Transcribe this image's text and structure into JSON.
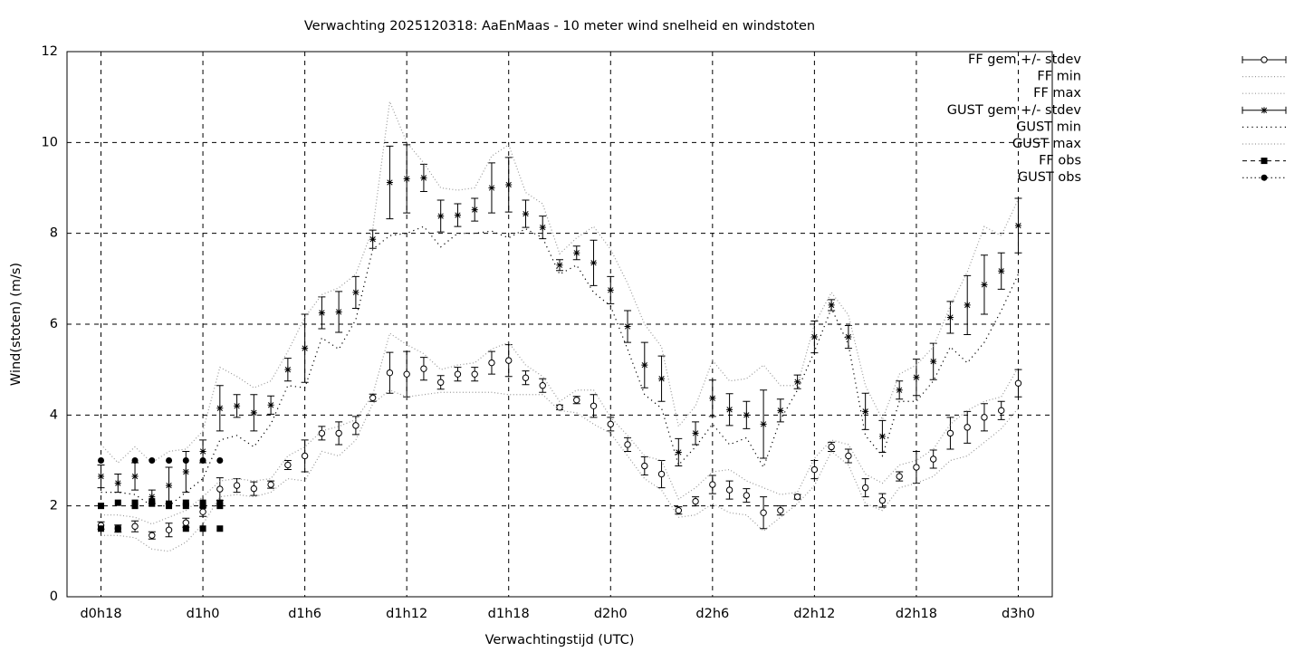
{
  "chart_data": {
    "type": "errorbar",
    "title": "Verwachting 2025120318: AaEnMaas - 10 meter wind snelheid en windstoten",
    "x_label": "Verwachtingstijd (UTC)",
    "y_label": "Wind(stoten) (m/s)",
    "xlim": [
      16,
      74
    ],
    "xticks": [
      {
        "value": 18,
        "label": "d0h18"
      },
      {
        "value": 24,
        "label": "d1h0"
      },
      {
        "value": 30,
        "label": "d1h6"
      },
      {
        "value": 36,
        "label": "d1h12"
      },
      {
        "value": 42,
        "label": "d1h18"
      },
      {
        "value": 48,
        "label": "d2h0"
      },
      {
        "value": 54,
        "label": "d2h6"
      },
      {
        "value": 60,
        "label": "d2h12"
      },
      {
        "value": 66,
        "label": "d2h18"
      },
      {
        "value": 72,
        "label": "d3h0"
      }
    ],
    "ylim": [
      0,
      12
    ],
    "yticks": [
      0,
      2,
      4,
      6,
      8,
      10,
      12
    ],
    "grid": true,
    "legend": "outside-right",
    "x": [
      18,
      19,
      20,
      21,
      22,
      23,
      24,
      25,
      26,
      27,
      28,
      29,
      30,
      31,
      32,
      33,
      34,
      35,
      36,
      37,
      38,
      39,
      40,
      41,
      42,
      43,
      44,
      45,
      46,
      47,
      48,
      49,
      50,
      51,
      52,
      53,
      54,
      55,
      56,
      57,
      58,
      59,
      60,
      61,
      62,
      63,
      64,
      65,
      66,
      67,
      68,
      69,
      70,
      71,
      72
    ],
    "series": [
      {
        "name": "FF gem +/- stdev",
        "style": "errorbar",
        "marker": "circle",
        "color": "#000000",
        "values": [
          1.57,
          1.5,
          1.55,
          1.35,
          1.47,
          1.63,
          1.87,
          2.37,
          2.45,
          2.38,
          2.47,
          2.9,
          3.1,
          3.6,
          3.6,
          3.77,
          4.38,
          4.93,
          4.9,
          5.02,
          4.72,
          4.9,
          4.9,
          5.15,
          5.2,
          4.82,
          4.65,
          4.17,
          4.33,
          4.2,
          3.8,
          3.35,
          2.88,
          2.7,
          1.9,
          2.1,
          2.47,
          2.35,
          2.23,
          1.85,
          1.9,
          2.2,
          2.8,
          3.3,
          3.1,
          2.4,
          2.12,
          2.65,
          2.85,
          3.03,
          3.6,
          3.73,
          3.95,
          4.1,
          4.7
        ],
        "errors": [
          0.08,
          0.08,
          0.12,
          0.08,
          0.15,
          0.1,
          0.1,
          0.25,
          0.15,
          0.15,
          0.08,
          0.1,
          0.35,
          0.15,
          0.25,
          0.2,
          0.08,
          0.45,
          0.5,
          0.25,
          0.15,
          0.15,
          0.15,
          0.25,
          0.35,
          0.15,
          0.15,
          0.05,
          0.08,
          0.25,
          0.15,
          0.15,
          0.2,
          0.3,
          0.08,
          0.1,
          0.2,
          0.2,
          0.15,
          0.35,
          0.1,
          0.05,
          0.2,
          0.1,
          0.15,
          0.2,
          0.15,
          0.1,
          0.35,
          0.2,
          0.35,
          0.35,
          0.3,
          0.2,
          0.3
        ]
      },
      {
        "name": "FF min",
        "style": "dotted",
        "color": "#999999",
        "values": [
          1.35,
          1.35,
          1.3,
          1.05,
          1.0,
          1.2,
          1.6,
          2.2,
          2.25,
          2.2,
          2.3,
          2.6,
          2.55,
          3.2,
          3.1,
          3.45,
          4.25,
          4.55,
          4.4,
          4.45,
          4.5,
          4.5,
          4.5,
          4.5,
          4.45,
          4.45,
          4.45,
          4.1,
          4.05,
          3.8,
          3.6,
          3.1,
          2.6,
          2.35,
          1.75,
          1.8,
          2.05,
          1.85,
          1.8,
          1.45,
          1.75,
          2.05,
          2.45,
          3.2,
          2.9,
          2.05,
          1.9,
          2.4,
          2.5,
          2.65,
          3.0,
          3.1,
          3.4,
          3.7,
          4.15
        ]
      },
      {
        "name": "FF max",
        "style": "dotted",
        "color": "#999999",
        "values": [
          1.8,
          1.8,
          1.75,
          1.6,
          1.75,
          1.9,
          2.2,
          2.55,
          2.6,
          2.55,
          2.6,
          3.1,
          3.3,
          3.65,
          3.75,
          3.9,
          4.45,
          5.8,
          5.55,
          5.35,
          5.0,
          5.1,
          5.15,
          5.45,
          5.6,
          5.1,
          4.85,
          4.3,
          4.55,
          4.55,
          3.95,
          3.55,
          3.1,
          3.0,
          2.15,
          2.4,
          2.75,
          2.8,
          2.55,
          2.4,
          2.25,
          2.3,
          3.05,
          3.45,
          3.35,
          2.7,
          2.5,
          2.9,
          3.0,
          3.25,
          3.8,
          4.1,
          4.3,
          4.4,
          5.05
        ]
      },
      {
        "name": "GUST gem +/- stdev",
        "style": "errorbar",
        "marker": "star",
        "color": "#000000",
        "values": [
          2.65,
          2.5,
          2.65,
          2.2,
          2.45,
          2.75,
          3.2,
          4.15,
          4.2,
          4.05,
          4.22,
          5.0,
          5.47,
          6.25,
          6.27,
          6.7,
          7.87,
          9.12,
          9.2,
          9.22,
          8.38,
          8.4,
          8.52,
          9.0,
          9.07,
          8.43,
          8.13,
          7.3,
          7.57,
          7.35,
          6.75,
          5.95,
          5.1,
          4.8,
          3.18,
          3.6,
          4.37,
          4.12,
          4.0,
          3.8,
          4.1,
          4.73,
          5.72,
          6.42,
          5.72,
          4.08,
          3.53,
          4.55,
          4.83,
          5.18,
          6.15,
          6.42,
          6.87,
          7.17,
          8.17
        ],
        "errors": [
          0.25,
          0.2,
          0.3,
          0.15,
          0.4,
          0.45,
          0.25,
          0.5,
          0.25,
          0.4,
          0.2,
          0.25,
          0.75,
          0.35,
          0.45,
          0.35,
          0.2,
          0.8,
          0.75,
          0.3,
          0.35,
          0.25,
          0.25,
          0.55,
          0.6,
          0.3,
          0.25,
          0.12,
          0.15,
          0.5,
          0.3,
          0.35,
          0.5,
          0.5,
          0.3,
          0.25,
          0.4,
          0.35,
          0.3,
          0.75,
          0.25,
          0.15,
          0.35,
          0.12,
          0.25,
          0.4,
          0.35,
          0.2,
          0.4,
          0.4,
          0.35,
          0.65,
          0.65,
          0.4,
          0.6
        ]
      },
      {
        "name": "GUST min",
        "style": "dotted",
        "color": "#000000",
        "values": [
          2.3,
          2.3,
          2.25,
          2.0,
          2.0,
          2.3,
          2.6,
          3.45,
          3.55,
          3.3,
          3.8,
          4.65,
          4.6,
          5.7,
          5.45,
          6.1,
          7.65,
          7.95,
          8.0,
          8.15,
          7.7,
          8.0,
          8.0,
          8.05,
          7.9,
          8.1,
          7.9,
          7.1,
          7.3,
          6.7,
          6.4,
          5.45,
          4.45,
          4.15,
          2.9,
          3.3,
          3.8,
          3.35,
          3.5,
          2.85,
          3.9,
          4.55,
          5.4,
          6.35,
          5.55,
          3.55,
          3.1,
          4.3,
          4.3,
          4.75,
          5.5,
          5.15,
          5.6,
          6.3,
          7.1
        ]
      },
      {
        "name": "GUST max",
        "style": "dotted",
        "color": "#999999",
        "values": [
          3.35,
          2.95,
          3.3,
          2.95,
          3.2,
          3.25,
          3.65,
          5.05,
          4.85,
          4.6,
          4.75,
          5.4,
          6.15,
          6.65,
          6.8,
          7.1,
          8.1,
          10.9,
          10.0,
          9.55,
          9.0,
          8.95,
          9.0,
          9.7,
          9.95,
          8.9,
          8.65,
          7.55,
          7.9,
          8.15,
          7.65,
          6.9,
          6.0,
          5.5,
          3.75,
          4.2,
          5.2,
          4.75,
          4.8,
          5.1,
          4.65,
          4.65,
          6.0,
          6.7,
          6.2,
          4.65,
          3.9,
          4.9,
          5.1,
          5.5,
          6.4,
          7.15,
          8.15,
          7.95,
          8.75
        ]
      },
      {
        "name": "FF obs",
        "style": "points",
        "marker": "square",
        "color": "#000000",
        "x": [
          18,
          18,
          19,
          19,
          20,
          20,
          21,
          21,
          22,
          22,
          23,
          23,
          23,
          24,
          24,
          24,
          25,
          25,
          25
        ],
        "values": [
          2.0,
          1.5,
          2.07,
          1.5,
          2.07,
          2.0,
          2.1,
          2.05,
          2.05,
          2.0,
          2.07,
          2.0,
          1.5,
          2.07,
          2.0,
          1.5,
          2.07,
          2.0,
          1.5
        ]
      },
      {
        "name": "GUST obs",
        "style": "points",
        "marker": "dot",
        "color": "#000000",
        "x": [
          18,
          20,
          21,
          22,
          23,
          24,
          25
        ],
        "values": [
          3.0,
          3.0,
          3.0,
          3.0,
          3.0,
          3.0,
          3.0
        ]
      }
    ]
  }
}
